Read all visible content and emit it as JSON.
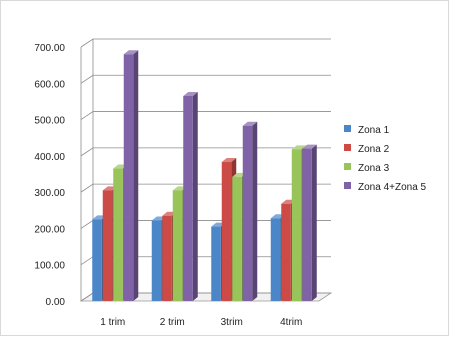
{
  "chart_data": {
    "type": "bar",
    "categories": [
      "1 trim",
      "2 trim",
      "3trim",
      "4trim"
    ],
    "series": [
      {
        "name": "Zona 1",
        "values": [
          225,
          222,
          205,
          228
        ],
        "color": "#4a86c8"
      },
      {
        "name": "Zona 2",
        "values": [
          305,
          235,
          383,
          268
        ],
        "color": "#cc4b46"
      },
      {
        "name": "Zona 3",
        "values": [
          365,
          305,
          342,
          418
        ],
        "color": "#98c45a"
      },
      {
        "name": "Zona 4+Zona 5",
        "values": [
          680,
          565,
          483,
          420
        ],
        "color": "#7f63a6"
      }
    ],
    "yticks": [
      "0.00",
      "100.00",
      "200.00",
      "300.00",
      "400.00",
      "500.00",
      "600.00",
      "700.00"
    ],
    "ylim": [
      0,
      700
    ],
    "grid": true,
    "legend": "right",
    "title": "",
    "xlabel": "",
    "ylabel": ""
  }
}
